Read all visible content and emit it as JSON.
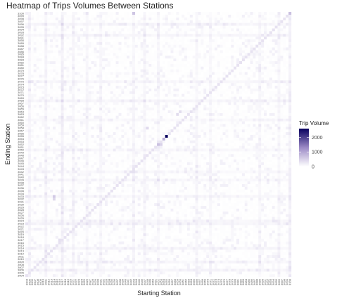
{
  "chart_data": {
    "type": "heatmap",
    "title": "Heatmap of Trips Volumes Between Stations",
    "xlabel": "Starting Station",
    "ylabel": "Ending Station",
    "station_first": 3004,
    "station_last": 3100,
    "station_count": 97,
    "y_tick_labels_visible": [
      "3004",
      "3005",
      "3006",
      "3007",
      "3008",
      "3009",
      "3010",
      "3011",
      "3012",
      "3013",
      "3014",
      "3015",
      "3016",
      "3017",
      "3018",
      "3019",
      "3020",
      "3021",
      "3022",
      "3023",
      "3024",
      "3025",
      "3026",
      "3027",
      "3028",
      "3029",
      "3030",
      "3031",
      "3032",
      "3033",
      "3034",
      "3035",
      "3036",
      "3037",
      "3038",
      "3039",
      "3040",
      "3041",
      "3042",
      "3043",
      "3044",
      "3045",
      "3046",
      "3047",
      "3048",
      "3049",
      "3050",
      "3051",
      "3052",
      "3053",
      "3054",
      "3055",
      "3056",
      "3057",
      "3058",
      "3059",
      "3060",
      "3061",
      "3062",
      "3063",
      "3064",
      "3065",
      "3066",
      "3067",
      "3068",
      "3069",
      "3070",
      "3071",
      "3072",
      "3073",
      "3074",
      "3075",
      "3076",
      "3077",
      "3078",
      "3079",
      "3080",
      "3081",
      "3082",
      "3083",
      "3084",
      "3085",
      "3086",
      "3087",
      "3088",
      "3089",
      "3090",
      "3091",
      "3092",
      "3093",
      "3094",
      "3095",
      "3096",
      "3097",
      "3098",
      "3099",
      "3100"
    ],
    "colorbar": {
      "title": "Trip Volume",
      "min": 0,
      "max": 2600,
      "ticks": [
        0,
        1000,
        2000
      ],
      "color_low": "#ffffff",
      "color_high": "#08005e"
    },
    "diagonal_value": 320,
    "background_value": 60,
    "noise_value": 35,
    "hotspots": [
      {
        "start": 3055,
        "end": 3055,
        "value": 2600
      },
      {
        "start": 3054,
        "end": 3054,
        "value": 900
      },
      {
        "start": 3052,
        "end": 3052,
        "value": 700
      },
      {
        "start": 3053,
        "end": 3052,
        "value": 500
      },
      {
        "start": 3100,
        "end": 3100,
        "value": 700
      },
      {
        "start": 3043,
        "end": 3100,
        "value": 650
      },
      {
        "start": 3014,
        "end": 3033,
        "value": 600
      },
      {
        "start": 3014,
        "end": 3032,
        "value": 450
      },
      {
        "start": 3017,
        "end": 3068,
        "value": 420
      },
      {
        "start": 3048,
        "end": 3058,
        "value": 420
      },
      {
        "start": 3059,
        "end": 3063,
        "value": 400
      },
      {
        "start": 3060,
        "end": 3064,
        "value": 380
      },
      {
        "start": 3004,
        "end": 3023,
        "value": 300
      },
      {
        "start": 3011,
        "end": 3013,
        "value": 330
      },
      {
        "start": 3016,
        "end": 3017,
        "value": 340
      }
    ],
    "column_bands": [
      {
        "start": 3005,
        "value": 140
      },
      {
        "start": 3011,
        "value": 170
      },
      {
        "start": 3017,
        "value": 220
      },
      {
        "start": 3021,
        "value": 130
      },
      {
        "start": 3026,
        "value": 120
      },
      {
        "start": 3031,
        "value": 110
      },
      {
        "start": 3043,
        "value": 120
      },
      {
        "start": 3047,
        "value": 130
      },
      {
        "start": 3052,
        "value": 110
      },
      {
        "start": 3066,
        "value": 110
      },
      {
        "start": 3071,
        "value": 90
      },
      {
        "start": 3089,
        "value": 100
      },
      {
        "start": 3096,
        "value": 110
      },
      {
        "start": 3100,
        "value": 190
      }
    ],
    "row_bands": [
      {
        "end": 3006,
        "value": 140
      },
      {
        "end": 3009,
        "value": 120
      },
      {
        "end": 3014,
        "value": 130
      },
      {
        "end": 3023,
        "value": 140
      },
      {
        "end": 3024,
        "value": 120
      },
      {
        "end": 3033,
        "value": 120
      },
      {
        "end": 3039,
        "value": 100
      },
      {
        "end": 3042,
        "value": 90
      },
      {
        "end": 3050,
        "value": 110
      },
      {
        "end": 3061,
        "value": 100
      },
      {
        "end": 3068,
        "value": 130
      },
      {
        "end": 3075,
        "value": 110
      },
      {
        "end": 3092,
        "value": 120
      },
      {
        "end": 3096,
        "value": 120
      }
    ],
    "legend_position": "right",
    "grid": false
  }
}
